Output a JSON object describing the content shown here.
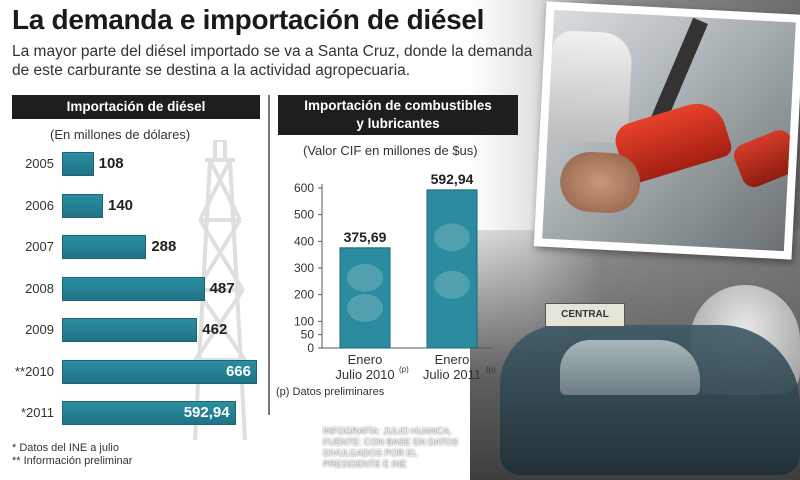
{
  "title": "La demanda e importación de diésel",
  "subtitle": "La mayor parte del diésel importado se va a Santa Cruz, donde la demanda de este carburante se destina a la actividad agropecuaria.",
  "left_panel": {
    "header": "Importación de diésel",
    "unit": "(En millones de dólares)"
  },
  "right_panel": {
    "header_line1": "Importación de combustibles",
    "header_line2": "y lubricantes",
    "unit": "(Valor CIF en millones de $us)"
  },
  "chart_data": [
    {
      "type": "bar",
      "orientation": "horizontal",
      "title": "Importación de diésel",
      "ylabel": "(En millones de dólares)",
      "categories": [
        "2005",
        "2006",
        "2007",
        "2008",
        "2009",
        "**2010",
        "*2011"
      ],
      "values": [
        108,
        140,
        288,
        487,
        462,
        666,
        592.94
      ],
      "labels": [
        "108",
        "140",
        "288",
        "487",
        "462",
        "666",
        "592,94"
      ],
      "color": "#1e7486"
    },
    {
      "type": "bar",
      "title": "Importación de combustibles y lubricantes",
      "ylabel": "(Valor CIF en millones de $us)",
      "categories": [
        "Enero Julio 2010(p)",
        "Enero Julio 2011(p)"
      ],
      "category_lines": [
        [
          "Enero",
          "Julio 2010",
          "(p)"
        ],
        [
          "Enero",
          "Julio 2011",
          "(p)"
        ]
      ],
      "values": [
        375.69,
        592.94
      ],
      "labels": [
        "375,69",
        "592,94"
      ],
      "ylim": [
        0,
        600
      ],
      "yticks": [
        0,
        50,
        100,
        200,
        300,
        400,
        500,
        600
      ],
      "grid": false,
      "color": "#2a8c9e"
    }
  ],
  "footnotes": {
    "line1": "* Datos del INE a julio",
    "line2": "** Información preliminar"
  },
  "prelim_note": "(p) Datos preliminares",
  "credit": "INFOGRAFÍA: JULIO HUANCA, FUENTE: CON BASE EN DATOS DIVULGADOS POR EL PRESIDENTE E INE",
  "photo": {
    "taxi_sign": "CENTRAL"
  }
}
